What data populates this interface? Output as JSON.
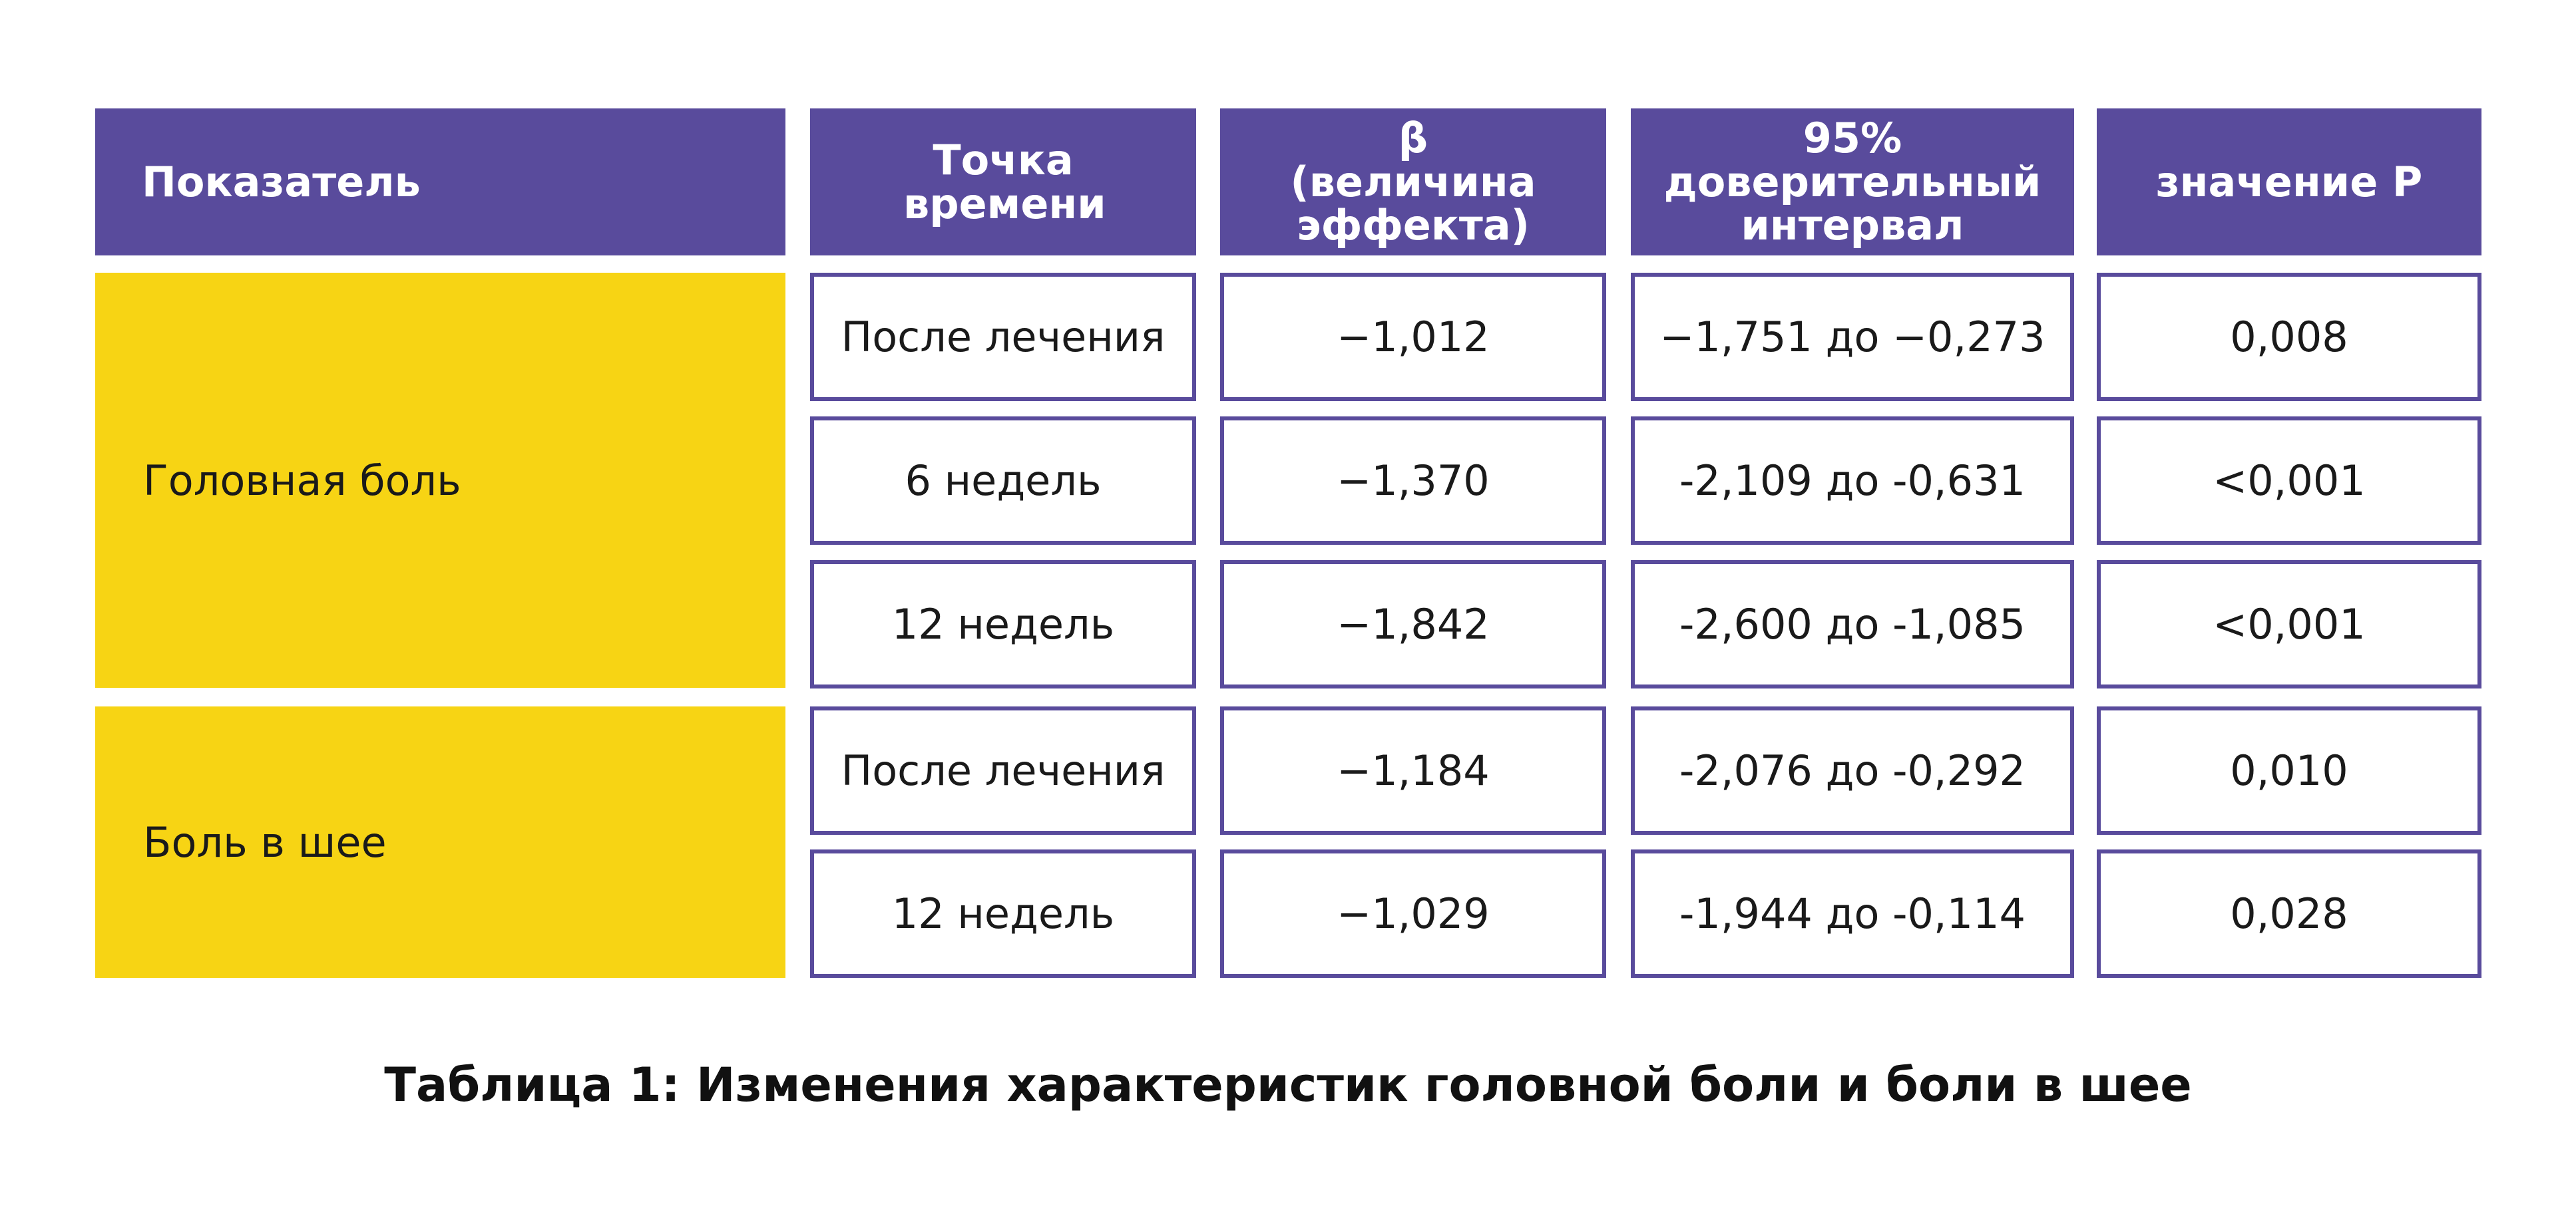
{
  "table": {
    "headers": [
      "Показатель",
      "Точка времени",
      "β (величина эффекта)",
      "95% доверительный интервал",
      "значение P"
    ],
    "groups": [
      {
        "label": "Головная боль",
        "rows": [
          [
            "После лечения",
            "−1,012",
            "−1,751 до −0,273",
            "0,008"
          ],
          [
            "6 недель",
            "−1,370",
            "-2,109 до -0,631",
            "<0,001"
          ],
          [
            "12 недель",
            "−1,842",
            "-2,600 до -1,085",
            "<0,001"
          ]
        ]
      },
      {
        "label": "Боль в шее",
        "rows": [
          [
            "После лечения",
            "−1,184",
            "-2,076 до -0,292",
            "0,010"
          ],
          [
            "12 недель",
            "−1,029",
            "-1,944 до -0,114",
            "0,028"
          ]
        ]
      }
    ]
  },
  "caption": "Таблица 1: Изменения характеристик головной боли и боли в шее",
  "colors": {
    "header_bg": "#594b9c",
    "header_text": "#ffffff",
    "group_bg": "#f7d414",
    "cell_border": "#594b9c"
  }
}
